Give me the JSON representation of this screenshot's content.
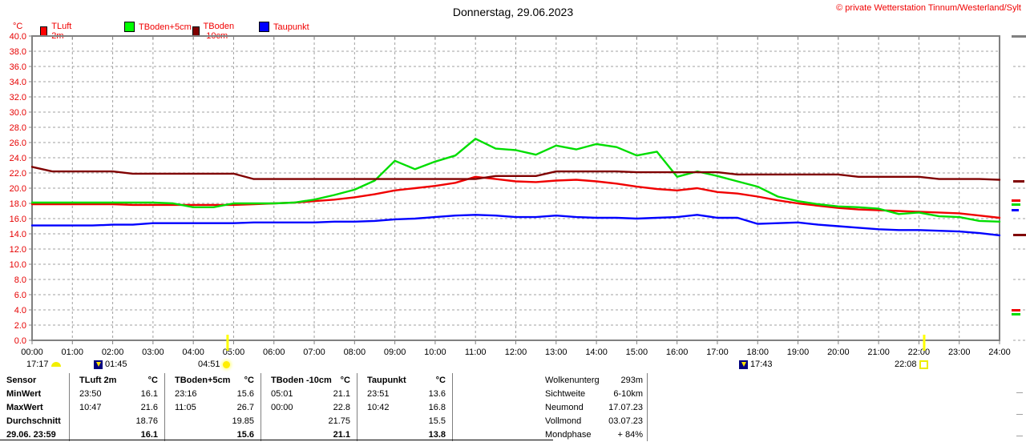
{
  "header": {
    "title": "Donnerstag, 29.06.2023",
    "copyright": "© private Wetterstation Tinnum/Westerland/Sylt"
  },
  "colors": {
    "tluft": "#f00000",
    "tboden5": "#00dd00",
    "tboden10": "#800000",
    "taupunkt": "#0000ff",
    "axis_text": "#e60000",
    "grid": "#a0a0a0",
    "border": "#808080",
    "sun_marker": "#ffff00"
  },
  "legend": [
    {
      "label": "TLuft 2m",
      "color": "#ff0000"
    },
    {
      "label": "TBoden+5cm",
      "color": "#00ff00"
    },
    {
      "label": "TBoden -10cm",
      "color": "#800000"
    },
    {
      "label": "Taupunkt",
      "color": "#0000ff"
    }
  ],
  "axis_unit": "°C",
  "chart_data": {
    "type": "line",
    "title": "Donnerstag, 29.06.2023",
    "ylabel": "°C",
    "ylim": [
      0,
      40
    ],
    "y_tick_step": 2,
    "grid": true,
    "legend_position": "top",
    "y_tick_labels": [
      "40.0",
      "38.0",
      "36.0",
      "34.0",
      "32.0",
      "30.0",
      "28.0",
      "26.0",
      "24.0",
      "22.0",
      "20.0",
      "18.0",
      "16.0",
      "14.0",
      "12.0",
      "10.0",
      "8.0",
      "6.0",
      "4.0",
      "2.0",
      "0.0"
    ],
    "x_tick_labels": [
      "00:00",
      "01:00",
      "02:00",
      "03:00",
      "04:00",
      "05:00",
      "06:00",
      "07:00",
      "08:00",
      "09:00",
      "10:00",
      "11:00",
      "12:00",
      "13:00",
      "14:00",
      "15:00",
      "16:00",
      "17:00",
      "18:00",
      "19:00",
      "20:00",
      "21:00",
      "22:00",
      "23:00",
      "24:00"
    ],
    "x_hours": [
      0,
      0.5,
      1,
      1.5,
      2,
      2.5,
      3,
      3.5,
      4,
      4.5,
      5,
      5.5,
      6,
      6.5,
      7,
      7.5,
      8,
      8.5,
      9,
      9.5,
      10,
      10.5,
      11,
      11.5,
      12,
      12.5,
      13,
      13.5,
      14,
      14.5,
      15,
      15.5,
      16,
      16.5,
      17,
      17.5,
      18,
      18.5,
      19,
      19.5,
      20,
      20.5,
      21,
      21.5,
      22,
      22.5,
      23,
      23.5,
      24
    ],
    "series": [
      {
        "name": "TLuft 2m",
        "color": "#f00000",
        "values": [
          17.9,
          17.9,
          17.9,
          17.9,
          17.9,
          17.8,
          17.8,
          17.8,
          17.8,
          17.8,
          17.8,
          17.9,
          18.0,
          18.1,
          18.3,
          18.5,
          18.8,
          19.2,
          19.7,
          20.0,
          20.3,
          20.7,
          21.5,
          21.2,
          20.9,
          20.8,
          21.0,
          21.1,
          20.9,
          20.6,
          20.2,
          19.9,
          19.7,
          20.0,
          19.5,
          19.3,
          18.9,
          18.4,
          18.0,
          17.7,
          17.4,
          17.2,
          17.1,
          17.0,
          16.9,
          16.8,
          16.7,
          16.4,
          16.1
        ]
      },
      {
        "name": "TBoden+5cm",
        "color": "#00dd00",
        "values": [
          18.1,
          18.1,
          18.1,
          18.1,
          18.1,
          18.1,
          18.1,
          18.0,
          17.5,
          17.5,
          18.0,
          18.0,
          18.0,
          18.1,
          18.5,
          19.1,
          19.8,
          21.0,
          23.6,
          22.5,
          23.5,
          24.3,
          26.5,
          25.2,
          25.0,
          24.4,
          25.6,
          25.1,
          25.8,
          25.4,
          24.3,
          24.8,
          21.5,
          22.2,
          21.6,
          20.9,
          20.2,
          18.9,
          18.3,
          17.9,
          17.6,
          17.5,
          17.3,
          16.6,
          16.8,
          16.3,
          16.2,
          15.7,
          15.6
        ]
      },
      {
        "name": "TBoden -10cm",
        "color": "#800000",
        "values": [
          22.8,
          22.2,
          22.2,
          22.2,
          22.2,
          21.9,
          21.9,
          21.9,
          21.9,
          21.9,
          21.9,
          21.2,
          21.2,
          21.2,
          21.2,
          21.2,
          21.2,
          21.2,
          21.2,
          21.2,
          21.2,
          21.2,
          21.2,
          21.6,
          21.6,
          21.6,
          22.2,
          22.2,
          22.2,
          22.2,
          22.1,
          22.1,
          22.1,
          22.1,
          22.1,
          21.8,
          21.8,
          21.8,
          21.8,
          21.8,
          21.8,
          21.5,
          21.5,
          21.5,
          21.5,
          21.2,
          21.2,
          21.2,
          21.1
        ]
      },
      {
        "name": "Taupunkt",
        "color": "#0000ff",
        "values": [
          15.1,
          15.1,
          15.1,
          15.1,
          15.2,
          15.2,
          15.4,
          15.4,
          15.4,
          15.4,
          15.4,
          15.5,
          15.5,
          15.5,
          15.5,
          15.6,
          15.6,
          15.7,
          15.9,
          16.0,
          16.2,
          16.4,
          16.5,
          16.4,
          16.2,
          16.2,
          16.4,
          16.2,
          16.1,
          16.1,
          16.0,
          16.1,
          16.2,
          16.5,
          16.1,
          16.1,
          15.3,
          15.4,
          15.5,
          15.2,
          15.0,
          14.8,
          14.6,
          14.5,
          14.5,
          14.4,
          14.3,
          14.1,
          13.8
        ]
      }
    ]
  },
  "day_markers": [
    {
      "time": "17:17",
      "type": "moonset"
    },
    {
      "time": "01:45",
      "type": "moonrise"
    },
    {
      "time": "04:51",
      "type": "sunrise",
      "axis_hour": 4.85
    },
    {
      "time": "17:43",
      "type": "moonrise"
    },
    {
      "time": "22:08",
      "type": "sunset",
      "axis_hour": 22.13
    }
  ],
  "table": {
    "unit": "°C",
    "row_labels": [
      "Sensor",
      "MinWert",
      "MaxWert",
      "Durchschnitt",
      "29.06. 23:59"
    ],
    "columns": [
      {
        "name": "TLuft 2m",
        "min_time": "23:50",
        "min": "16.1",
        "max_time": "10:47",
        "max": "21.6",
        "avg": "18.76",
        "current": "16.1"
      },
      {
        "name": "TBoden+5cm",
        "min_time": "23:16",
        "min": "15.6",
        "max_time": "11:05",
        "max": "26.7",
        "avg": "19.85",
        "current": "15.6"
      },
      {
        "name": "TBoden -10cm",
        "min_time": "05:01",
        "min": "21.1",
        "max_time": "00:00",
        "max": "22.8",
        "avg": "21.75",
        "current": "21.1"
      },
      {
        "name": "Taupunkt",
        "min_time": "23:51",
        "min": "13.6",
        "max_time": "10:42",
        "max": "16.8",
        "avg": "15.5",
        "current": "13.8"
      }
    ]
  },
  "info": {
    "rows": [
      {
        "label": "Wolkenunterg",
        "value": "293m"
      },
      {
        "label": "Sichtweite",
        "value": "6-10km"
      },
      {
        "label": "Neumond",
        "value": "17.07.23"
      },
      {
        "label": "Vollmond",
        "value": "03.07.23"
      },
      {
        "label": "Mondphase",
        "value": "+ 84%"
      }
    ]
  }
}
